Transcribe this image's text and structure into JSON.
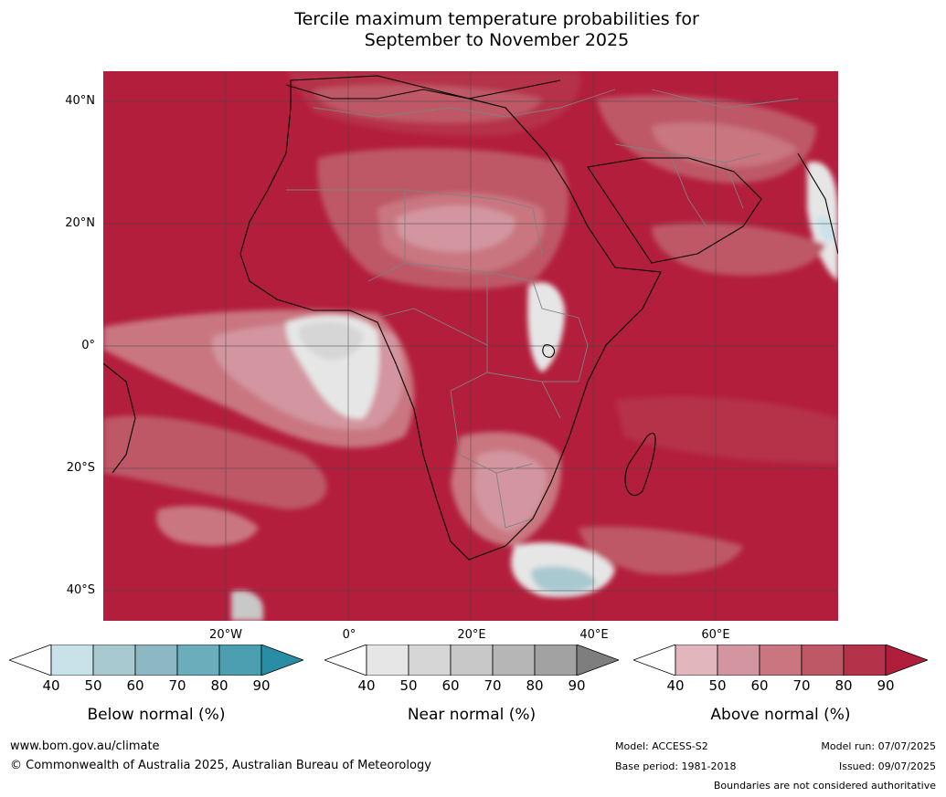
{
  "title_line1": "Tercile maximum temperature probabilities for",
  "title_line2": "September to November 2025",
  "lat_labels": [
    "40°N",
    "20°N",
    "0°",
    "20°S",
    "40°S"
  ],
  "lon_labels": [
    "20°W",
    "0°",
    "20°E",
    "40°E",
    "60°E"
  ],
  "colorbars": [
    {
      "title": "Below normal (%)",
      "ticks": [
        "40",
        "50",
        "60",
        "70",
        "80",
        "90"
      ],
      "colors": [
        "#c9e2ea",
        "#a9c9d0",
        "#8bb8c3",
        "#6badbb",
        "#4b9fae"
      ],
      "extend_color": "#2a8da6"
    },
    {
      "title": "Near normal (%)",
      "ticks": [
        "40",
        "50",
        "60",
        "70",
        "80",
        "90"
      ],
      "colors": [
        "#e6e6e6",
        "#d6d6d6",
        "#c8c8c8",
        "#b6b6b6",
        "#a2a2a2"
      ],
      "extend_color": "#7e7e7e"
    },
    {
      "title": "Above normal (%)",
      "ticks": [
        "40",
        "50",
        "60",
        "70",
        "80",
        "90"
      ],
      "colors": [
        "#e2b6bd",
        "#d3959f",
        "#c97680",
        "#be5866",
        "#b5334a"
      ],
      "extend_color": "#b01e3c"
    }
  ],
  "footer": {
    "url": "www.bom.gov.au/climate",
    "copyright": "© Commonwealth of Australia 2025, Australian Bureau of Meteorology",
    "model": "Model: ACCESS-S2",
    "base_period": "Base period: 1981-2018",
    "model_run": "Model run: 07/07/2025",
    "issued": "Issued: 09/07/2025",
    "disclaimer": "Boundaries are not considered authoritative"
  },
  "colors": {
    "ocean_land_base": "#b31e3c",
    "coast": "#000000",
    "border": "#808080",
    "grid": "#444444"
  }
}
